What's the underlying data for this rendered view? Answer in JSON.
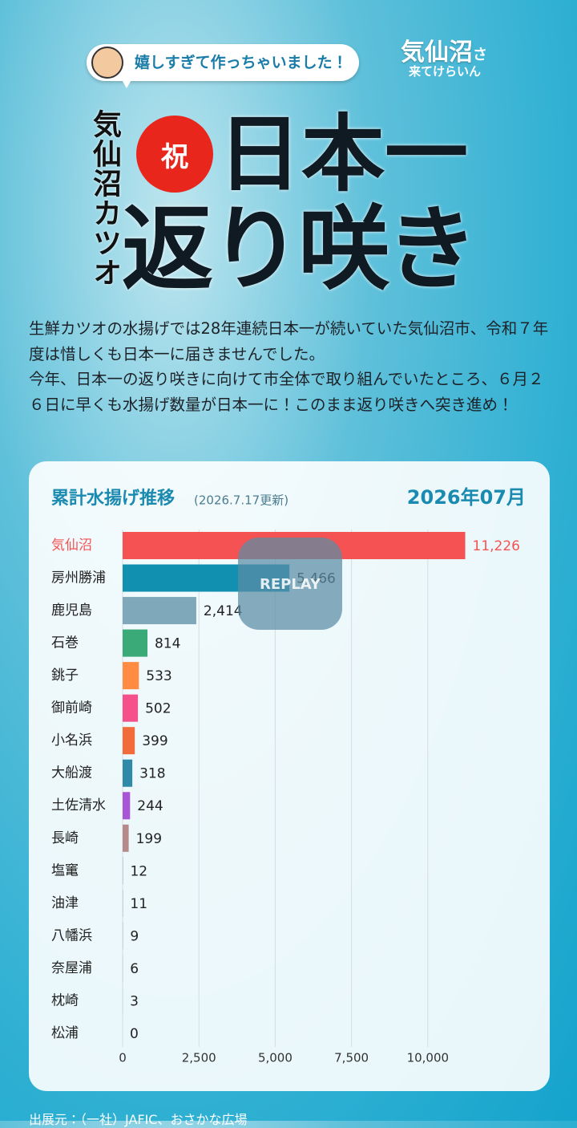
{
  "header": {
    "speech": "嬉しすぎて作っちゃいました！",
    "logo_title": "気仙沼",
    "logo_suffix": "さ",
    "logo_subtitle": "来てけらいん",
    "vertical": "気仙沼カツオ",
    "badge": "祝",
    "headline_1": "日本一",
    "headline_2": "返り咲き"
  },
  "intro": [
    "生鮮カツオの水揚げでは28年連続日本一が続いていた気仙沼市、令和７年度は惜しくも日本一に届きませんでした。",
    "今年、日本一の返り咲きに向けて市全体で取り組んでいたところ、６月２６日に早くも水揚げ数量が日本一に！このまま返り咲きへ突き進め！"
  ],
  "replay": "REPLAY",
  "footer": "出展元：（一社）JAFIC、おさかな広場",
  "chart_data": {
    "type": "hbar",
    "title": "累計水揚げ推移",
    "subtitle": "(2026.7.17更新)",
    "period": "2026年07月",
    "categories": [
      "気仙沼",
      "房州勝浦",
      "鹿児島",
      "石巻",
      "銚子",
      "御前崎",
      "小名浜",
      "大船渡",
      "土佐清水",
      "長崎",
      "塩竃",
      "油津",
      "八幡浜",
      "奈屋浦",
      "枕崎",
      "松浦"
    ],
    "values": [
      11226,
      5466,
      2414,
      814,
      533,
      502,
      399,
      318,
      244,
      199,
      12,
      11,
      9,
      6,
      3,
      0
    ],
    "value_labels": [
      "11,226",
      "5,466",
      "2,414",
      "814",
      "533",
      "502",
      "399",
      "318",
      "244",
      "199",
      "12",
      "11",
      "9",
      "6",
      "3",
      "0"
    ],
    "colors": [
      "#f55353",
      "#1190b0",
      "#7fa9bb",
      "#3aaa78",
      "#ff8c42",
      "#f5508a",
      "#f26b3a",
      "#2e8aa8",
      "#a855d6",
      "#b58a88",
      "#7fa9bb",
      "#7fa9bb",
      "#7fa9bb",
      "#7fa9bb",
      "#7fa9bb",
      "#7fa9bb"
    ],
    "highlight_color": "#f55353",
    "xlim": [
      0,
      12000
    ],
    "xticks": [
      0,
      {
        "value": 2500,
        "label": "2,500"
      },
      {
        "value": 5000,
        "label": "5,000"
      },
      {
        "value": 7500,
        "label": "7,500"
      },
      {
        "value": 10000,
        "label": "10,000"
      }
    ],
    "grid": true
  }
}
